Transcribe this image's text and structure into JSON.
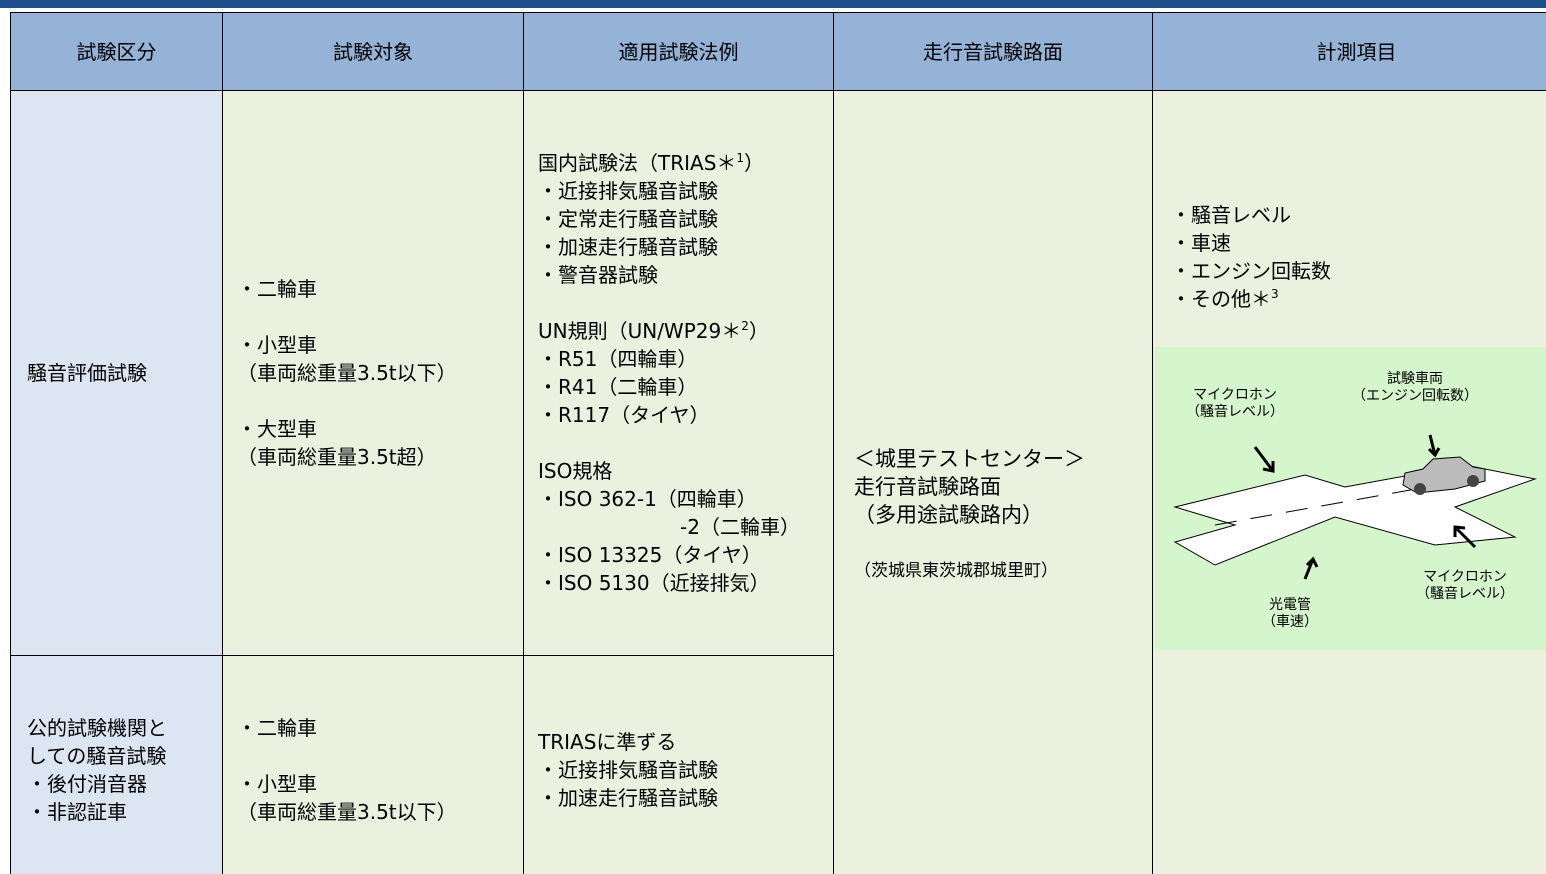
{
  "header": [
    "試験区分",
    "試験対象",
    "適用試験法例",
    "走行音試験路面",
    "計測項目"
  ],
  "rows": [
    {
      "category": [
        "騒音評価試験"
      ],
      "targets": [
        [
          "・二輪車"
        ],
        [
          "・小型車",
          "（車両総重量3.5t以下）"
        ],
        [
          "・大型車",
          "（車両総重量3.5t超）"
        ]
      ],
      "methods": [
        [
          {
            "text": "国内試験法（TRIAS＊",
            "sup": "1",
            "tail": "）"
          },
          "・近接排気騒音試験",
          "・定常走行騒音試験",
          "・加速走行騒音試験",
          "・警音器試験"
        ],
        [
          {
            "text": "UN規則（UN/WP29＊",
            "sup": "2",
            "tail": "）"
          },
          "・R51（四輪車）",
          "・R41（二輪車）",
          "・R117（タイヤ）"
        ],
        [
          "ISO規格",
          "・ISO 362-1（四輪車）",
          "-2（二輪車）",
          "・ISO 13325（タイヤ）",
          "・ISO 5130（近接排気）"
        ]
      ]
    },
    {
      "category": [
        "公的試験機関と",
        "しての騒音試験",
        " ・後付消音器",
        " ・非認証車"
      ],
      "targets": [
        [
          "・二輪車"
        ],
        [
          "・小型車",
          "（車両総重量3.5t以下）"
        ]
      ],
      "methods": [
        [
          "TRIASに準ずる",
          "・近接排気騒音試験",
          "・加速走行騒音試験"
        ]
      ]
    }
  ],
  "surface": [
    [
      "＜城里テストセンター＞",
      " 走行音試験路面",
      " （多用途試験路内）"
    ],
    [
      "（茨城県東茨城郡城里町）"
    ]
  ],
  "measurements": [
    "・騒音レベル",
    "・車速",
    "・エンジン回転数",
    {
      "text": "・その他＊",
      "sup": "3",
      "tail": ""
    }
  ],
  "diagram": {
    "labels": [
      [
        "マイクロホン",
        "（騒音レベル）"
      ],
      [
        "試験車両",
        "（エンジン回転数）"
      ],
      [
        "マイクロホン",
        "（騒音レベル）"
      ],
      [
        "光電管",
        "（車速）"
      ]
    ]
  }
}
